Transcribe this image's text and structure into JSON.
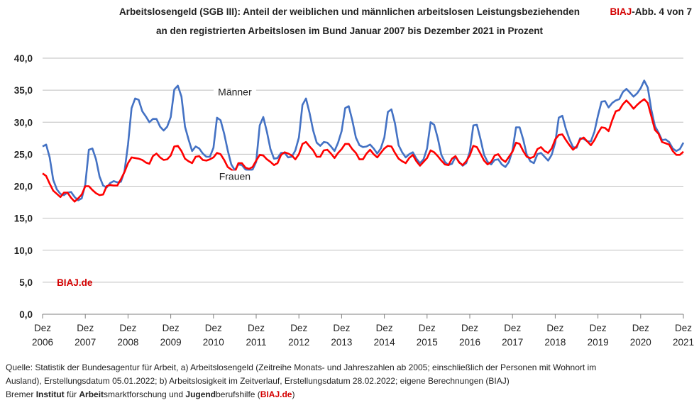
{
  "header": {
    "title_line1": "Arbeitslosengeld (SGB III): Anteil der weiblichen und männlichen arbeitslosen Leistungsbeziehenden",
    "title_line2": "an den registrierten Arbeitslosen im Bund Januar 2007 bis Dezember 2021 in Prozent",
    "badge_brand": "BIAJ",
    "badge_rest": "-Abb. 4 von 7"
  },
  "watermark": "BIAJ.de",
  "footer": {
    "line1": "Quelle: Statistik der Bundesagentur für Arbeit, a) Arbeitslosengeld  (Zeitreihe Monats- und Jahreszahlen ab 2005; einschließlich der Personen mit Wohnort im",
    "line2": "Ausland), Erstellungsdatum 05.01.2022; b) Arbeitslosigkeit im Zeitverlauf, Erstellungsdatum 28.02.2022; eigene Berechnungen (BIAJ)",
    "line3_parts": [
      "Bremer ",
      "Institut",
      " für ",
      "Arbeit",
      "smarktforschung und ",
      "Jugend",
      "berufshilfe (",
      "BIAJ.de",
      ")"
    ]
  },
  "colors": {
    "maenner": "#4472C4",
    "frauen": "#ff0000",
    "brand": "#d40000",
    "grid": "#bfbfbf"
  },
  "chart_data": {
    "type": "line",
    "title": "Arbeitslosengeld (SGB III): Anteil der weiblichen und männlichen arbeitslosen Leistungsbeziehenden an den registrierten Arbeitslosen im Bund Januar 2007 bis Dezember 2021 in Prozent",
    "ylim": [
      0,
      40
    ],
    "yticks": [
      "0,0",
      "5,0",
      "10,0",
      "15,0",
      "20,0",
      "25,0",
      "30,0",
      "35,0",
      "40,0"
    ],
    "xticks": [
      {
        "top": "Dez",
        "bottom": "2006"
      },
      {
        "top": "Dez",
        "bottom": "2007"
      },
      {
        "top": "Dez",
        "bottom": "2008"
      },
      {
        "top": "Dez",
        "bottom": "2009"
      },
      {
        "top": "Dez",
        "bottom": "2010"
      },
      {
        "top": "Dez",
        "bottom": "2011"
      },
      {
        "top": "Dez",
        "bottom": "2012"
      },
      {
        "top": "Dez",
        "bottom": "2013"
      },
      {
        "top": "Dez",
        "bottom": "2014"
      },
      {
        "top": "Dez",
        "bottom": "2015"
      },
      {
        "top": "Dez",
        "bottom": "2016"
      },
      {
        "top": "Dez",
        "bottom": "2017"
      },
      {
        "top": "Dez",
        "bottom": "2018"
      },
      {
        "top": "Dez",
        "bottom": "2019"
      },
      {
        "top": "Dez",
        "bottom": "2020"
      },
      {
        "top": "Dez",
        "bottom": "2021"
      }
    ],
    "x_start": "Dez 2006",
    "x_step": "1 Monat",
    "series": [
      {
        "name": "Männer",
        "values": [
          26.2,
          26.5,
          24.5,
          21.0,
          19.5,
          18.8,
          18.6,
          19.0,
          19.1,
          18.3,
          17.8,
          18.1,
          20.3,
          25.7,
          25.9,
          24.2,
          21.5,
          20.1,
          19.8,
          20.5,
          20.8,
          20.6,
          20.7,
          22.3,
          26.5,
          32.2,
          33.7,
          33.5,
          31.7,
          30.9,
          30.0,
          30.5,
          30.5,
          29.3,
          28.7,
          29.3,
          30.8,
          35.1,
          35.7,
          34.0,
          29.3,
          27.3,
          25.5,
          26.2,
          25.9,
          25.1,
          24.6,
          24.6,
          26.0,
          30.7,
          30.3,
          28.2,
          25.6,
          23.4,
          22.5,
          23.4,
          23.3,
          22.6,
          22.5,
          22.6,
          23.8,
          29.5,
          30.8,
          28.5,
          25.8,
          24.3,
          24.4,
          25.2,
          25.2,
          24.5,
          24.6,
          25.6,
          27.6,
          32.7,
          33.7,
          31.4,
          28.7,
          26.8,
          26.3,
          26.9,
          26.8,
          26.2,
          25.5,
          26.8,
          28.6,
          32.2,
          32.5,
          30.3,
          27.6,
          26.4,
          26.1,
          26.2,
          26.5,
          25.9,
          25.1,
          25.9,
          27.6,
          31.6,
          32.0,
          29.8,
          26.4,
          25.3,
          24.5,
          25.0,
          25.3,
          24.3,
          23.6,
          24.2,
          25.9,
          30.0,
          29.6,
          27.5,
          24.9,
          23.8,
          23.3,
          23.5,
          24.6,
          23.8,
          23.2,
          23.6,
          25.4,
          29.5,
          29.6,
          27.4,
          24.9,
          23.8,
          23.4,
          24.1,
          24.2,
          23.4,
          23.0,
          23.8,
          25.6,
          29.2,
          29.2,
          27.3,
          24.9,
          23.9,
          23.6,
          25.0,
          25.2,
          24.6,
          24.0,
          24.9,
          26.8,
          30.7,
          31.0,
          28.9,
          27.3,
          26.1,
          26.0,
          27.5,
          27.4,
          27.0,
          27.0,
          28.5,
          31.0,
          33.2,
          33.3,
          32.3,
          33.0,
          33.4,
          33.6,
          34.7,
          35.2,
          34.6,
          34.0,
          34.5,
          35.3,
          36.5,
          35.4,
          31.9,
          29.4,
          28.4,
          27.2,
          27.3,
          26.9,
          25.9,
          25.5,
          25.8,
          26.8
        ]
      },
      {
        "name": "Frauen",
        "values": [
          22.0,
          21.6,
          20.4,
          19.3,
          18.8,
          18.3,
          19.0,
          19.0,
          18.2,
          17.6,
          18.1,
          18.7,
          20.0,
          20.0,
          19.4,
          18.9,
          18.6,
          18.7,
          20.0,
          20.2,
          20.1,
          20.1,
          21.1,
          22.2,
          23.6,
          24.5,
          24.4,
          24.3,
          24.1,
          23.7,
          23.5,
          24.7,
          25.1,
          24.5,
          24.1,
          24.2,
          24.8,
          26.2,
          26.3,
          25.5,
          24.3,
          23.9,
          23.6,
          24.6,
          24.7,
          24.1,
          24.0,
          24.2,
          24.5,
          25.2,
          25.0,
          24.1,
          23.0,
          22.6,
          22.2,
          23.6,
          23.6,
          22.9,
          22.7,
          23.0,
          24.0,
          24.9,
          24.8,
          24.2,
          23.8,
          23.3,
          23.6,
          24.9,
          25.3,
          25.1,
          24.8,
          24.2,
          25.0,
          26.6,
          26.9,
          26.2,
          25.6,
          24.6,
          24.6,
          25.6,
          25.7,
          25.1,
          24.4,
          25.2,
          25.8,
          26.6,
          26.6,
          25.8,
          25.2,
          24.2,
          24.2,
          25.1,
          25.7,
          25.0,
          24.5,
          25.2,
          25.9,
          26.3,
          26.2,
          25.2,
          24.3,
          23.9,
          23.6,
          24.4,
          24.9,
          23.9,
          23.2,
          23.8,
          24.4,
          25.6,
          25.3,
          24.7,
          24.0,
          23.4,
          23.3,
          24.3,
          24.7,
          23.7,
          23.3,
          23.9,
          24.8,
          26.3,
          26.1,
          25.1,
          24.0,
          23.4,
          23.8,
          24.8,
          25.0,
          24.2,
          23.8,
          24.6,
          25.4,
          26.8,
          26.6,
          25.5,
          24.6,
          24.4,
          24.6,
          25.8,
          26.1,
          25.5,
          25.2,
          25.9,
          27.3,
          28.0,
          28.1,
          27.2,
          26.4,
          25.7,
          26.2,
          27.3,
          27.6,
          27.0,
          26.4,
          27.2,
          28.3,
          29.2,
          29.1,
          28.6,
          30.3,
          31.7,
          31.9,
          32.8,
          33.4,
          32.8,
          32.1,
          32.7,
          33.2,
          33.6,
          33.0,
          30.9,
          28.8,
          28.2,
          26.9,
          26.7,
          26.5,
          25.5,
          24.9,
          24.9,
          25.4
        ]
      }
    ],
    "annotations": [
      {
        "text": "Männer",
        "series": "Männer"
      },
      {
        "text": "Frauen",
        "series": "Frauen"
      }
    ]
  }
}
